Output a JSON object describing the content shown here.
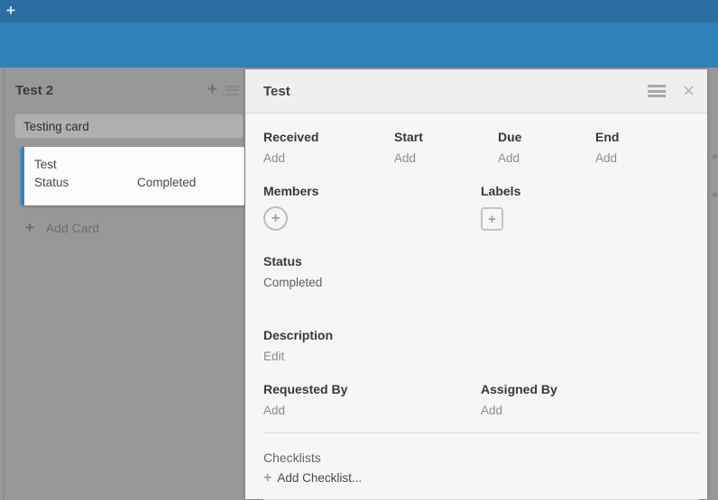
{
  "colors": {
    "topbar_dark": "#2a6f9f",
    "topbar_light": "#2e81ba",
    "board_bg": "#989898",
    "card_accent_blue": "#2e86c8",
    "panel_bg": "#f6f6f6"
  },
  "icons": {
    "plus": "+",
    "close": "×",
    "menu": "hamburger-bars"
  },
  "topbar": {
    "add_board_label": "+"
  },
  "board": {
    "list": {
      "title": "Test 2",
      "add_plus": "+",
      "input_value": "Testing card",
      "cards": [
        {
          "title": "Test",
          "field_label": "Status",
          "field_value": "Completed"
        }
      ],
      "add_card_label": "Add Card"
    }
  },
  "card_detail": {
    "title": "Test",
    "dates": [
      {
        "label": "Received",
        "action": "Add"
      },
      {
        "label": "Start",
        "action": "Add"
      },
      {
        "label": "Due",
        "action": "Add"
      },
      {
        "label": "End",
        "action": "Add"
      }
    ],
    "members_label": "Members",
    "labels_label": "Labels",
    "status_label": "Status",
    "status_value": "Completed",
    "description_label": "Description",
    "description_action": "Edit",
    "requested_by_label": "Requested By",
    "requested_by_action": "Add",
    "assigned_by_label": "Assigned By",
    "assigned_by_action": "Add",
    "checklists_label": "Checklists",
    "add_checklist_label": "Add Checklist..."
  }
}
